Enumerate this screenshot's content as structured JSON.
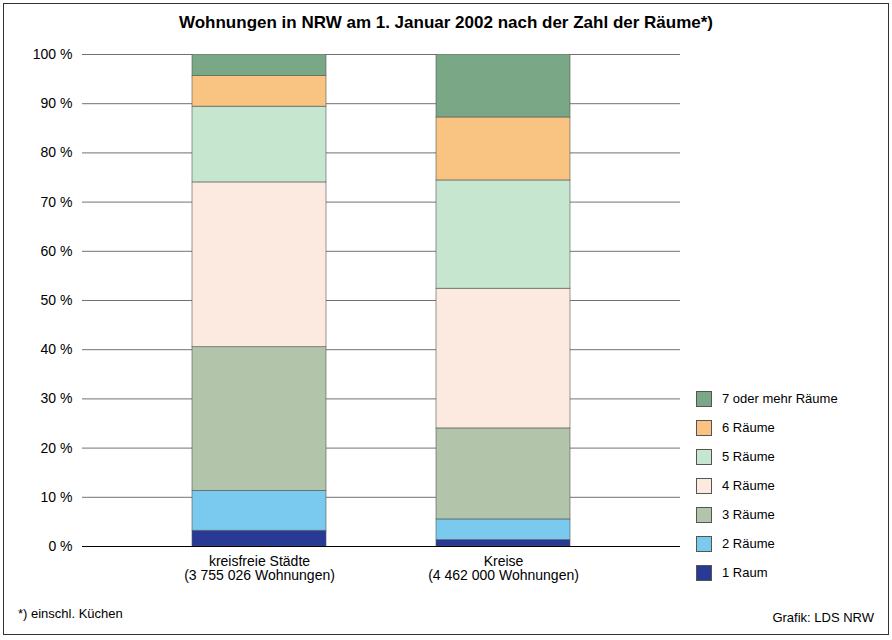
{
  "chart_data": {
    "type": "bar",
    "stacked": true,
    "title": "Wohnungen in NRW am 1. Januar 2002 nach der Zahl der Räume*)",
    "footnote": "*) einschl. Küchen",
    "source": "Grafik: LDS NRW",
    "categories": [
      "kreisfreie Städte\n(3 755 026 Wohnungen)",
      "Kreise\n(4 462 000 Wohnungen)"
    ],
    "series": [
      {
        "name": "1 Raum",
        "color": "#283a96",
        "values": [
          3.2,
          1.3
        ]
      },
      {
        "name": "2 Räume",
        "color": "#7ac9ee",
        "values": [
          8.1,
          4.2
        ]
      },
      {
        "name": "3 Räume",
        "color": "#b2c4a9",
        "values": [
          29.2,
          18.5
        ]
      },
      {
        "name": "4 Räume",
        "color": "#fce9e0",
        "values": [
          33.5,
          28.4
        ]
      },
      {
        "name": "5 Räume",
        "color": "#c6e6cf",
        "values": [
          15.4,
          22.0
        ]
      },
      {
        "name": "6 Räume",
        "color": "#f9c482",
        "values": [
          6.2,
          12.8
        ]
      },
      {
        "name": "7 oder mehr Räume",
        "color": "#7aa886",
        "values": [
          4.4,
          12.8
        ]
      }
    ],
    "ylim": [
      0,
      100
    ],
    "yticks": [
      {
        "value": 0,
        "label": "0 %"
      },
      {
        "value": 10,
        "label": "10 %"
      },
      {
        "value": 20,
        "label": "20 %"
      },
      {
        "value": 30,
        "label": "30 %"
      },
      {
        "value": 40,
        "label": "40 %"
      },
      {
        "value": 50,
        "label": "50 %"
      },
      {
        "value": 60,
        "label": "60 %"
      },
      {
        "value": 70,
        "label": "70 %"
      },
      {
        "value": 80,
        "label": "80 %"
      },
      {
        "value": 90,
        "label": "90 %"
      },
      {
        "value": 100,
        "label": "100 %"
      }
    ],
    "grid": true,
    "legend": "right",
    "data_labels": false
  }
}
